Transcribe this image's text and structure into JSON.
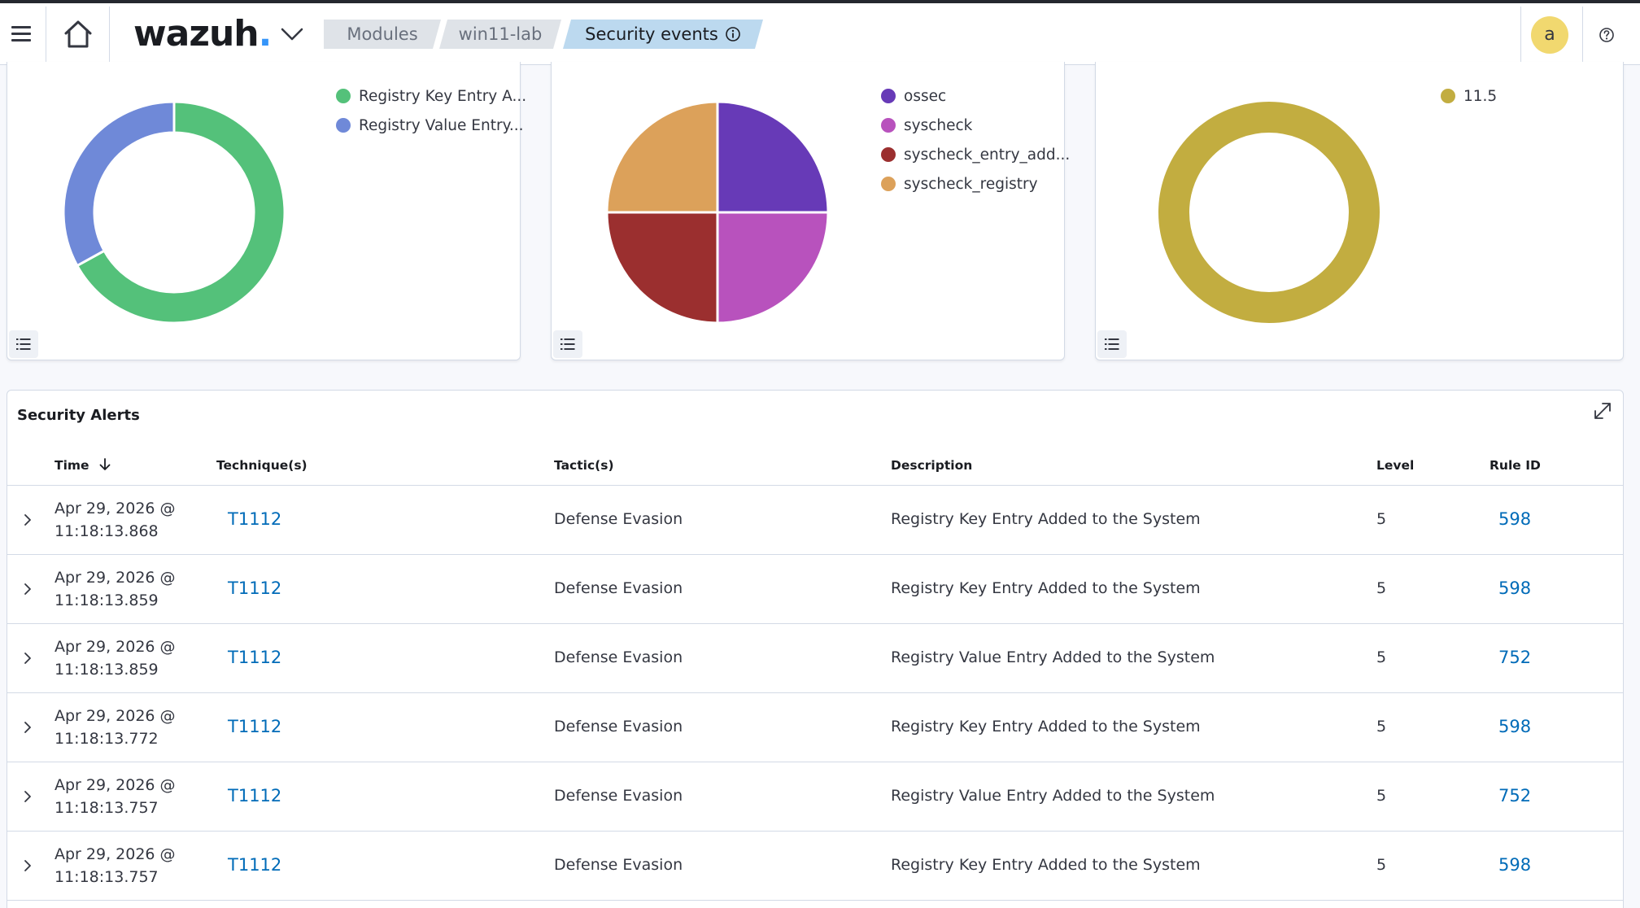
{
  "header": {
    "logo_text": "wazuh",
    "logo_dot": ".",
    "breadcrumbs": [
      "Modules",
      "win11-lab",
      "Security events"
    ],
    "avatar_initial": "a",
    "icons": [
      "menu-icon",
      "home-icon",
      "chevron-down-icon",
      "info-icon",
      "help-icon"
    ]
  },
  "panels": [
    {
      "type": "donut",
      "legend": [
        {
          "label": "Registry Key Entry A...",
          "color": "#54c17a"
        },
        {
          "label": "Registry Value Entry...",
          "color": "#6f89d8"
        }
      ],
      "slices": [
        {
          "label": "Registry Key Entry A...",
          "value": 67,
          "color": "#54c17a"
        },
        {
          "label": "Registry Value Entry...",
          "value": 33,
          "color": "#6f89d8"
        }
      ]
    },
    {
      "type": "pie",
      "legend": [
        {
          "label": "ossec",
          "color": "#673ab7"
        },
        {
          "label": "syscheck",
          "color": "#b852bd"
        },
        {
          "label": "syscheck_entry_add...",
          "color": "#9b2f2f"
        },
        {
          "label": "syscheck_registry",
          "color": "#dca15a"
        }
      ],
      "slices": [
        {
          "label": "ossec",
          "value": 25,
          "color": "#673ab7"
        },
        {
          "label": "syscheck",
          "value": 25,
          "color": "#b852bd"
        },
        {
          "label": "syscheck_entry_add...",
          "value": 25,
          "color": "#9b2f2f"
        },
        {
          "label": "syscheck_registry",
          "value": 25,
          "color": "#dca15a"
        }
      ]
    },
    {
      "type": "donut",
      "legend": [
        {
          "label": "11.5",
          "color": "#c2ad40"
        }
      ],
      "slices": [
        {
          "label": "11.5",
          "value": 100,
          "color": "#c2ad40"
        }
      ]
    }
  ],
  "alerts": {
    "title": "Security Alerts",
    "columns": {
      "time": "Time",
      "technique": "Technique(s)",
      "tactic": "Tactic(s)",
      "description": "Description",
      "level": "Level",
      "rule_id": "Rule ID"
    },
    "rows": [
      {
        "time_date": "Apr 29, 2026 @",
        "time_clock": "11:18:13.868",
        "technique": "T1112",
        "tactic": "Defense Evasion",
        "description": "Registry Key Entry Added to the System",
        "level": "5",
        "rule_id": "598"
      },
      {
        "time_date": "Apr 29, 2026 @",
        "time_clock": "11:18:13.859",
        "technique": "T1112",
        "tactic": "Defense Evasion",
        "description": "Registry Key Entry Added to the System",
        "level": "5",
        "rule_id": "598"
      },
      {
        "time_date": "Apr 29, 2026 @",
        "time_clock": "11:18:13.859",
        "technique": "T1112",
        "tactic": "Defense Evasion",
        "description": "Registry Value Entry Added to the System",
        "level": "5",
        "rule_id": "752"
      },
      {
        "time_date": "Apr 29, 2026 @",
        "time_clock": "11:18:13.772",
        "technique": "T1112",
        "tactic": "Defense Evasion",
        "description": "Registry Key Entry Added to the System",
        "level": "5",
        "rule_id": "598"
      },
      {
        "time_date": "Apr 29, 2026 @",
        "time_clock": "11:18:13.757",
        "technique": "T1112",
        "tactic": "Defense Evasion",
        "description": "Registry Value Entry Added to the System",
        "level": "5",
        "rule_id": "752"
      },
      {
        "time_date": "Apr 29, 2026 @",
        "time_clock": "11:18:13.757",
        "technique": "T1112",
        "tactic": "Defense Evasion",
        "description": "Registry Key Entry Added to the System",
        "level": "5",
        "rule_id": "598"
      }
    ]
  }
}
